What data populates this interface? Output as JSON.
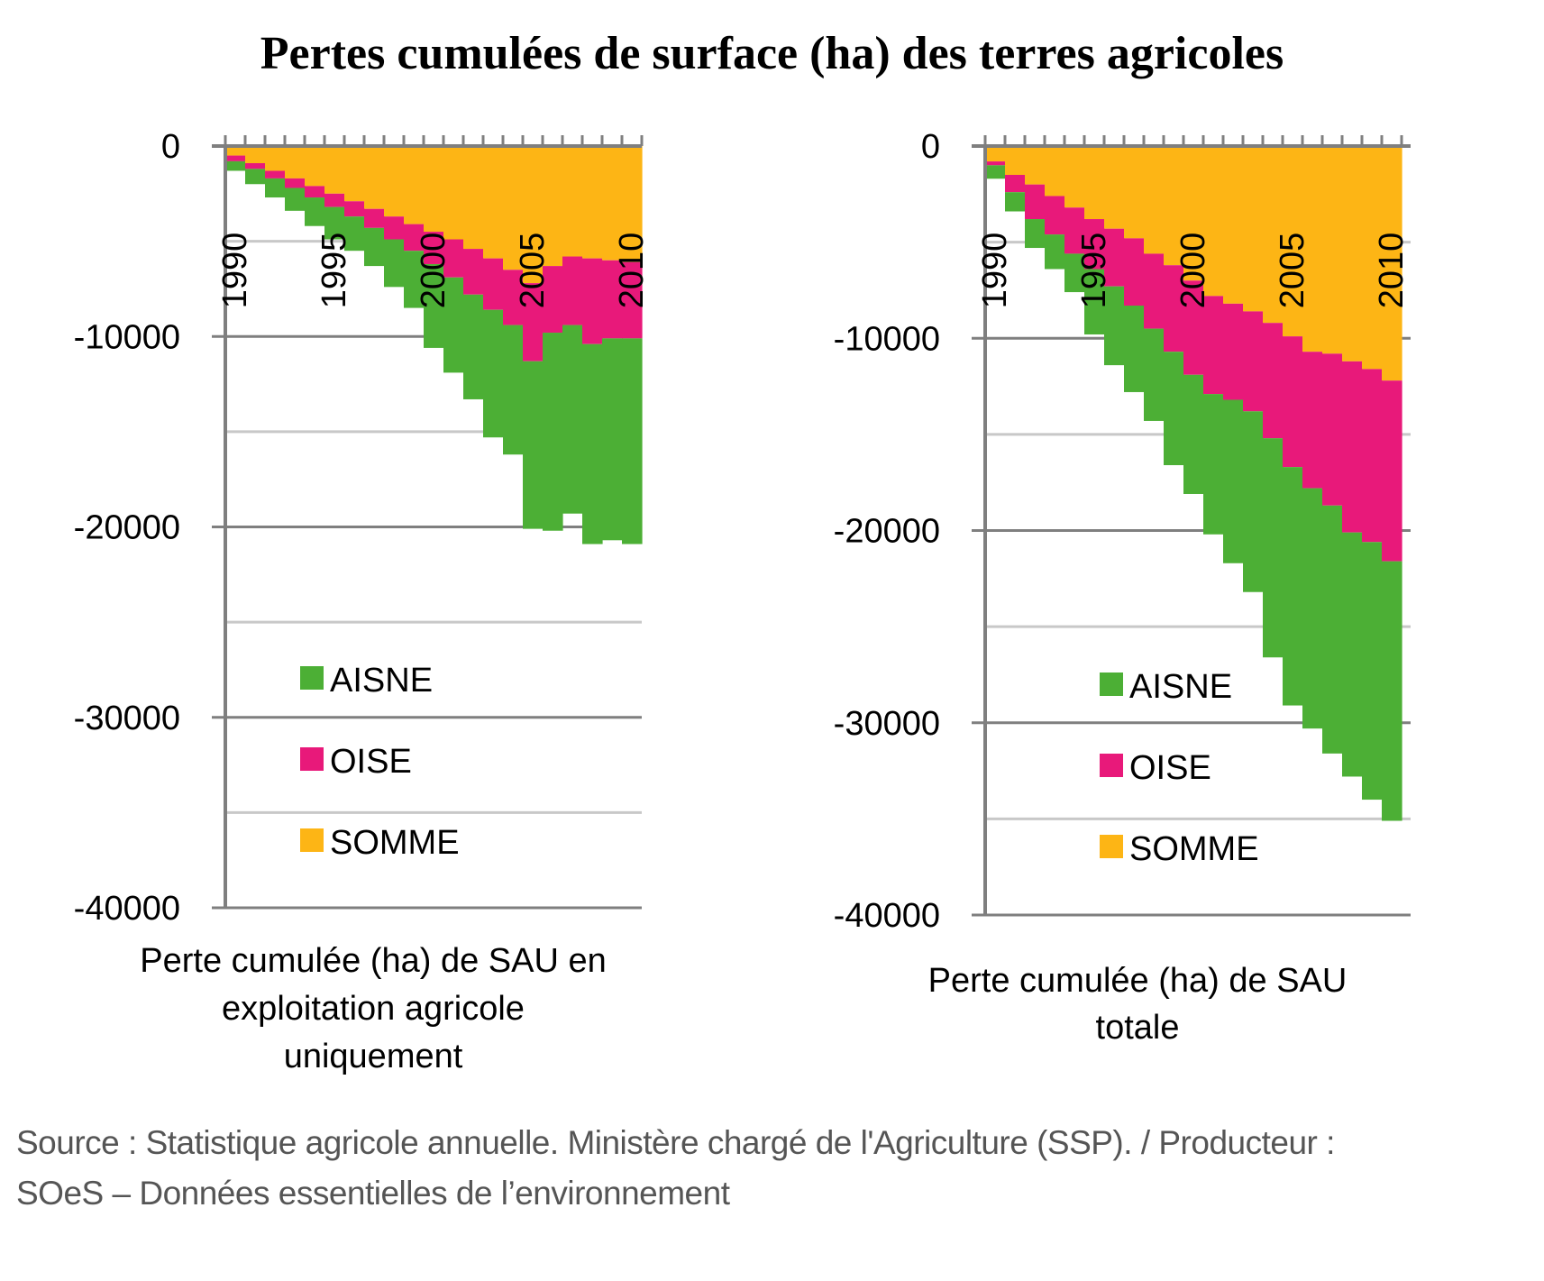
{
  "title": "Pertes cumulées de surface (ha) des terres agricoles",
  "source_line1": "Source : Statistique agricole annuelle. Ministère chargé de l'Agriculture (SSP). / Producteur :",
  "source_line2": "SOeS – Données essentielles de l’environnement",
  "colors": {
    "AISNE": "#4caf35",
    "OISE": "#e8197a",
    "SOMME": "#fdb515",
    "grid": "#c8c8c8",
    "axis": "#7f7f7f"
  },
  "chart_data": [
    {
      "type": "area",
      "subtitle_lines": [
        "Perte cumulée (ha) de SAU en",
        "exploitation agricole",
        "uniquement"
      ],
      "x": [
        1990,
        1991,
        1992,
        1993,
        1994,
        1995,
        1996,
        1997,
        1998,
        1999,
        2000,
        2001,
        2002,
        2003,
        2004,
        2005,
        2006,
        2007,
        2008,
        2009,
        2010
      ],
      "x_tick_labels": [
        "1990",
        "1995",
        "2000",
        "2005",
        "2010"
      ],
      "ylim": [
        -40000,
        0
      ],
      "y_tick_labels": [
        "0",
        "-10000",
        "-20000",
        "-30000",
        "-40000"
      ],
      "stacked": true,
      "series": [
        {
          "name": "SOMME",
          "values": [
            -500,
            -900,
            -1300,
            -1700,
            -2100,
            -2500,
            -2900,
            -3300,
            -3700,
            -4100,
            -4500,
            -4900,
            -5400,
            -5900,
            -6500,
            -7200,
            -6300,
            -5800,
            -5900,
            -6000,
            -6100
          ]
        },
        {
          "name": "OISE",
          "values": [
            -300,
            -300,
            -400,
            -500,
            -600,
            -700,
            -800,
            -1000,
            -1200,
            -1400,
            -1700,
            -2000,
            -2400,
            -2700,
            -2900,
            -4100,
            -3500,
            -3600,
            -4500,
            -4100,
            -4000
          ]
        },
        {
          "name": "AISNE",
          "values": [
            -500,
            -800,
            -1000,
            -1200,
            -1500,
            -1700,
            -1800,
            -2000,
            -2500,
            -3000,
            -4400,
            -5000,
            -5500,
            -6700,
            -6800,
            -8800,
            -10400,
            -9900,
            -10500,
            -10600,
            -10800
          ]
        }
      ],
      "legend_order": [
        "AISNE",
        "OISE",
        "SOMME"
      ],
      "grid": true,
      "legend_position": "bottom-center"
    },
    {
      "type": "area",
      "subtitle_lines": [
        "Perte cumulée (ha) de SAU",
        "totale"
      ],
      "x": [
        1990,
        1991,
        1992,
        1993,
        1994,
        1995,
        1996,
        1997,
        1998,
        1999,
        2000,
        2001,
        2002,
        2003,
        2004,
        2005,
        2006,
        2007,
        2008,
        2009,
        2010
      ],
      "x_tick_labels": [
        "1990",
        "1995",
        "2000",
        "2005",
        "2010"
      ],
      "ylim": [
        -40000,
        0
      ],
      "y_tick_labels": [
        "0",
        "-10000",
        "-20000",
        "-30000",
        "-40000"
      ],
      "stacked": true,
      "series": [
        {
          "name": "SOMME",
          "values": [
            -800,
            -1500,
            -2000,
            -2600,
            -3200,
            -3800,
            -4300,
            -4800,
            -5600,
            -6200,
            -7000,
            -7800,
            -8200,
            -8600,
            -9200,
            -9900,
            -10700,
            -10800,
            -11200,
            -11600,
            -12200
          ]
        },
        {
          "name": "OISE",
          "values": [
            -200,
            -900,
            -1800,
            -2000,
            -2400,
            -2600,
            -3000,
            -3500,
            -3900,
            -4500,
            -4900,
            -5100,
            -5000,
            -5200,
            -6000,
            -6800,
            -7100,
            -7900,
            -8900,
            -9000,
            -9400
          ]
        },
        {
          "name": "AISNE",
          "values": [
            -700,
            -1000,
            -1500,
            -1800,
            -2000,
            -3400,
            -4100,
            -4500,
            -4800,
            -5900,
            -6200,
            -7300,
            -8500,
            -9400,
            -11400,
            -12400,
            -12500,
            -12900,
            -12700,
            -13400,
            -13500
          ]
        }
      ],
      "legend_order": [
        "AISNE",
        "OISE",
        "SOMME"
      ],
      "grid": true,
      "legend_position": "bottom-center"
    }
  ]
}
